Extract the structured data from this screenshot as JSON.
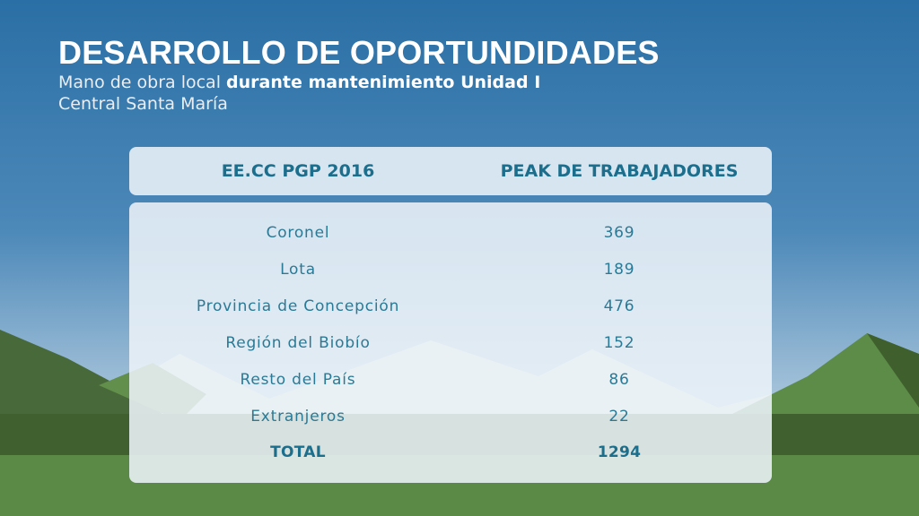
{
  "slide": {
    "title": "DESARROLLO DE OPORTUNDIDADES",
    "subtitle": {
      "part1": "Mano de obra local ",
      "part2_bold": "durante mantenimiento Unidad I",
      "line2": "Central Santa María"
    }
  },
  "table": {
    "headers": [
      "EE.CC PGP 2016",
      "PEAK DE TRABAJADORES"
    ],
    "rows": [
      {
        "label": "Coronel",
        "value": "369"
      },
      {
        "label": "Lota",
        "value": "189"
      },
      {
        "label": "Provincia de Concepción",
        "value": "476"
      },
      {
        "label": "Región del Biobío",
        "value": "152"
      },
      {
        "label": "Resto del País",
        "value": "86"
      },
      {
        "label": "Extranjeros",
        "value": "22"
      }
    ],
    "total": {
      "label": "TOTAL",
      "value": "1294"
    }
  },
  "colors": {
    "sky_top": "#2a6fa5",
    "sky_bottom": "#b9cfe0",
    "grass_dark": "#41602f",
    "grass_light": "#5a8a45",
    "text_accent": "#1b6e8c"
  }
}
